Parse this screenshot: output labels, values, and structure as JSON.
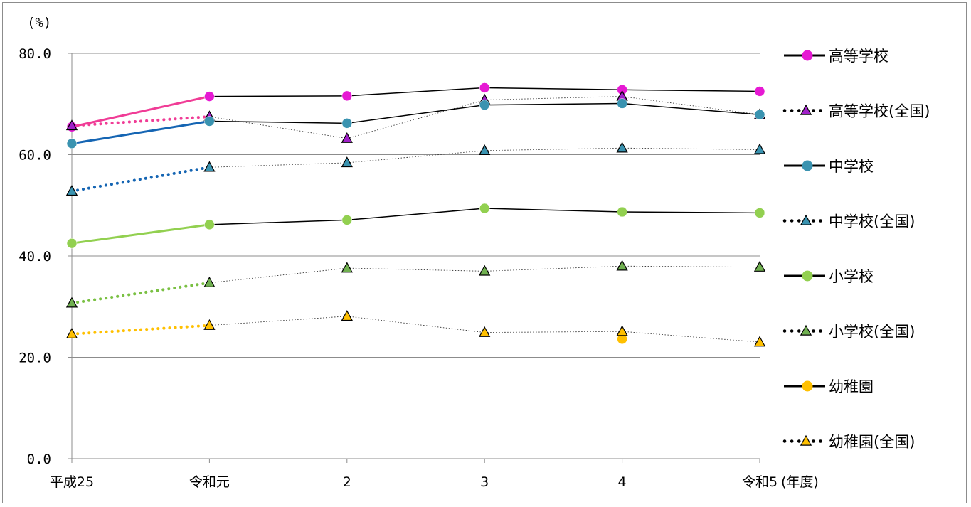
{
  "chart_data": {
    "type": "line",
    "unit_label": "(%)",
    "x_unit_label": "(年度)",
    "categories": [
      "平成25",
      "令和元",
      "2",
      "3",
      "4",
      "令和5"
    ],
    "ylim": [
      0,
      80
    ],
    "yticks": [
      "0.0",
      "20.0",
      "40.0",
      "60.0",
      "80.0"
    ],
    "ytick_values": [
      0,
      20,
      40,
      60,
      80
    ],
    "grid": true,
    "legend_position": "right",
    "series": [
      {
        "name": "高等学校",
        "style": "solid",
        "marker": "circle",
        "color": "#e619d3",
        "first_segment_color": "#f03c96",
        "values": [
          65.5,
          71.5,
          71.6,
          73.2,
          72.8,
          72.5
        ]
      },
      {
        "name": "高等学校(全国)",
        "style": "dotted",
        "marker": "triangle",
        "color": "#a020c8",
        "first_segment_color": "#f03c96",
        "values": [
          65.7,
          67.5,
          63.2,
          70.8,
          71.5,
          67.9
        ]
      },
      {
        "name": "中学校",
        "style": "solid",
        "marker": "circle",
        "color": "#3a93b0",
        "first_segment_color": "#1565b3",
        "values": [
          62.2,
          66.6,
          66.2,
          69.8,
          70.1,
          67.9
        ]
      },
      {
        "name": "中学校(全国)",
        "style": "dotted",
        "marker": "triangle",
        "color": "#3a93b0",
        "first_segment_color": "#1565b3",
        "values": [
          52.8,
          57.5,
          58.4,
          60.8,
          61.3,
          61.0
        ]
      },
      {
        "name": "小学校",
        "style": "solid",
        "marker": "circle",
        "color": "#92d050",
        "first_segment_color": "#92d050",
        "values": [
          42.5,
          46.2,
          47.1,
          49.4,
          48.7,
          48.5
        ]
      },
      {
        "name": "小学校(全国)",
        "style": "dotted",
        "marker": "triangle",
        "color": "#70b050",
        "first_segment_color": "#7ac043",
        "values": [
          30.7,
          34.7,
          37.6,
          37.0,
          38.0,
          37.8
        ]
      },
      {
        "name": "幼稚園",
        "style": "solid",
        "marker": "circle",
        "color": "#ffc000",
        "first_segment_color": "#ffc000",
        "values": [
          null,
          null,
          null,
          null,
          23.6,
          null
        ]
      },
      {
        "name": "幼稚園(全国)",
        "style": "dotted",
        "marker": "triangle",
        "color": "#ffc000",
        "first_segment_color": "#ffc000",
        "values": [
          24.6,
          26.3,
          28.1,
          24.9,
          25.1,
          23.0
        ]
      }
    ],
    "legend": [
      {
        "label": "高等学校",
        "line": "solid",
        "marker": "circle",
        "color": "#e619d3"
      },
      {
        "label": "高等学校(全国)",
        "line": "dotted",
        "marker": "triangle",
        "color": "#a020c8"
      },
      {
        "label": "中学校",
        "line": "solid",
        "marker": "circle",
        "color": "#3a93b0"
      },
      {
        "label": "中学校(全国)",
        "line": "dotted",
        "marker": "triangle",
        "color": "#3a93b0"
      },
      {
        "label": "小学校",
        "line": "solid",
        "marker": "circle",
        "color": "#92d050"
      },
      {
        "label": "小学校(全国)",
        "line": "dotted",
        "marker": "triangle",
        "color": "#70b050"
      },
      {
        "label": "幼稚園",
        "line": "solid",
        "marker": "circle",
        "color": "#ffc000"
      },
      {
        "label": "幼稚園(全国)",
        "line": "dotted",
        "marker": "triangle",
        "color": "#ffc000"
      }
    ]
  }
}
